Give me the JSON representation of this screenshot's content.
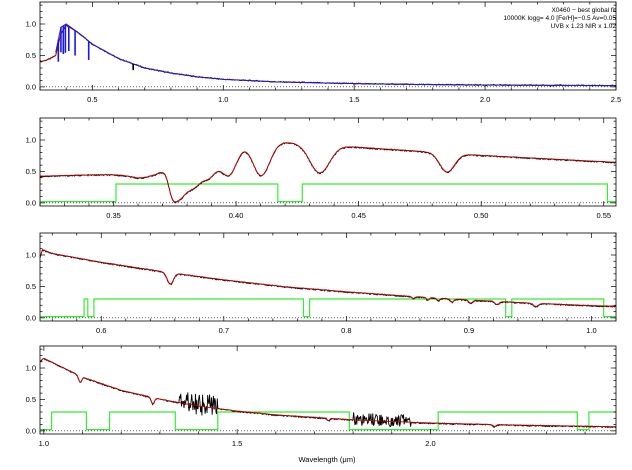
{
  "figure": {
    "xlabel": "Wavelength (μm)",
    "annotation": [
      "X0460 − best global fit",
      "10000K logg= 4.0 [Fe/H]=−0.5 Av=0.05",
      "UVB x 1.23  NIR x 1.02"
    ]
  },
  "colors": {
    "observed": "#000000",
    "model": "#c00000",
    "uvb_model": "#1a1adf",
    "mask": "#33ee33",
    "axis": "#000000"
  },
  "chart_data": [
    {
      "type": "line",
      "panel": "full",
      "xlim": [
        0.3,
        2.5
      ],
      "ylim": [
        -0.05,
        1.35
      ],
      "xticks": [
        0.5,
        1.0,
        1.5,
        2.0,
        2.5
      ],
      "xtick_labels": [
        "0.5",
        "1.0",
        "1.5",
        "2.0",
        "2.5"
      ],
      "yticks": [
        0.0,
        0.5,
        1.0
      ],
      "ytick_labels": [
        "0.0",
        "0.5",
        "1.0"
      ],
      "series": [
        {
          "role": "model",
          "x": [
            0.3,
            0.32,
            0.34,
            0.36,
            0.38,
            0.4,
            0.45,
            0.5,
            0.6,
            0.7,
            0.8,
            0.9,
            1.0,
            1.2,
            1.4,
            1.6,
            1.8,
            2.0,
            2.2,
            2.5
          ],
          "y": [
            0.4,
            0.42,
            0.45,
            0.5,
            0.85,
            0.98,
            0.85,
            0.68,
            0.45,
            0.3,
            0.22,
            0.16,
            0.12,
            0.08,
            0.06,
            0.045,
            0.035,
            0.03,
            0.025,
            0.02
          ]
        },
        {
          "role": "uvb_model",
          "x": [
            0.36,
            0.38,
            0.4,
            0.45,
            0.5,
            0.6,
            0.7,
            0.8,
            0.9,
            1.0,
            1.2,
            1.4,
            1.6,
            1.8,
            2.0,
            2.2,
            2.5
          ],
          "y": [
            0.55,
            0.95,
            1.0,
            0.85,
            0.68,
            0.45,
            0.3,
            0.22,
            0.16,
            0.12,
            0.08,
            0.06,
            0.045,
            0.035,
            0.03,
            0.025,
            0.02
          ]
        }
      ],
      "features": [
        {
          "x": 0.37,
          "depth": 0.35
        },
        {
          "x": 0.38,
          "depth": 0.4
        },
        {
          "x": 0.389,
          "depth": 0.45
        },
        {
          "x": 0.397,
          "depth": 0.45
        },
        {
          "x": 0.41,
          "depth": 0.4
        },
        {
          "x": 0.434,
          "depth": 0.4
        },
        {
          "x": 0.486,
          "depth": 0.3
        },
        {
          "x": 0.656,
          "depth": 0.1
        }
      ]
    },
    {
      "type": "line",
      "panel": "uvb",
      "xlim": [
        0.32,
        0.555
      ],
      "ylim": [
        -0.05,
        1.35
      ],
      "xticks": [
        0.35,
        0.4,
        0.45,
        0.5,
        0.55
      ],
      "xtick_labels": [
        "0.35",
        "0.40",
        "0.45",
        "0.50",
        "0.55"
      ],
      "yticks": [
        0.0,
        0.5,
        1.0
      ],
      "ytick_labels": [
        "0.0",
        "0.5",
        "1.0"
      ],
      "continuum": {
        "x": [
          0.32,
          0.34,
          0.36,
          0.37,
          0.38,
          0.39,
          0.4,
          0.42,
          0.45,
          0.5,
          0.555
        ],
        "y": [
          0.42,
          0.44,
          0.45,
          0.55,
          0.85,
          0.97,
          1.0,
          0.96,
          0.88,
          0.75,
          0.64
        ]
      },
      "lines": [
        {
          "x": 0.3646,
          "depth": 0.08,
          "width": 0.006
        },
        {
          "x": 0.3734,
          "depth": 0.25,
          "width": 0.0015
        },
        {
          "x": 0.375,
          "depth": 0.3,
          "width": 0.0017
        },
        {
          "x": 0.3771,
          "depth": 0.35,
          "width": 0.0019
        },
        {
          "x": 0.3798,
          "depth": 0.4,
          "width": 0.0022
        },
        {
          "x": 0.3835,
          "depth": 0.45,
          "width": 0.0025
        },
        {
          "x": 0.3889,
          "depth": 0.5,
          "width": 0.003
        },
        {
          "x": 0.397,
          "depth": 0.55,
          "width": 0.0035
        },
        {
          "x": 0.4102,
          "depth": 0.55,
          "width": 0.0035
        },
        {
          "x": 0.4341,
          "depth": 0.45,
          "width": 0.004
        },
        {
          "x": 0.4861,
          "depth": 0.3,
          "width": 0.003
        }
      ],
      "mask": {
        "low": 0.02,
        "high": 0.3,
        "segments": [
          [
            0.32,
            0.351,
            0.02
          ],
          [
            0.351,
            0.417,
            0.3
          ],
          [
            0.417,
            0.427,
            0.02
          ],
          [
            0.427,
            0.5515,
            0.3
          ],
          [
            0.5515,
            0.555,
            0.02
          ]
        ]
      }
    },
    {
      "type": "line",
      "panel": "vis",
      "xlim": [
        0.55,
        1.02
      ],
      "ylim": [
        -0.05,
        1.35
      ],
      "xticks": [
        0.6,
        0.7,
        0.8,
        0.9,
        1.0
      ],
      "xtick_labels": [
        "0.6",
        "0.7",
        "0.8",
        "0.9",
        "1.0"
      ],
      "yticks": [
        0.0,
        0.5,
        1.0
      ],
      "ytick_labels": [
        "0.0",
        "0.5",
        "1.0"
      ],
      "continuum": {
        "x": [
          0.55,
          0.552,
          0.56,
          0.6,
          0.65,
          0.7,
          0.75,
          0.8,
          0.85,
          0.9,
          0.95,
          1.0,
          1.02
        ],
        "y": [
          0.95,
          1.08,
          1.02,
          0.88,
          0.73,
          0.6,
          0.49,
          0.41,
          0.34,
          0.28,
          0.23,
          0.19,
          0.18
        ]
      },
      "lines": [
        {
          "x": 0.6563,
          "depth": 0.18,
          "width": 0.0025
        },
        {
          "x": 0.8545,
          "depth": 0.03,
          "width": 0.0012
        },
        {
          "x": 0.8665,
          "depth": 0.04,
          "width": 0.0012
        },
        {
          "x": 0.875,
          "depth": 0.04,
          "width": 0.0012
        },
        {
          "x": 0.8862,
          "depth": 0.05,
          "width": 0.0014
        },
        {
          "x": 0.9014,
          "depth": 0.05,
          "width": 0.0015
        },
        {
          "x": 0.9229,
          "depth": 0.05,
          "width": 0.0017
        },
        {
          "x": 0.9546,
          "depth": 0.05,
          "width": 0.002
        }
      ],
      "mask": {
        "low": 0.02,
        "high": 0.3,
        "segments": [
          [
            0.55,
            0.586,
            0.02
          ],
          [
            0.586,
            0.589,
            0.3
          ],
          [
            0.589,
            0.594,
            0.02
          ],
          [
            0.594,
            0.765,
            0.3
          ],
          [
            0.765,
            0.77,
            0.02
          ],
          [
            0.77,
            0.93,
            0.3
          ],
          [
            0.93,
            0.935,
            0.02
          ],
          [
            0.935,
            1.01,
            0.3
          ],
          [
            1.01,
            1.02,
            0.02
          ]
        ]
      }
    },
    {
      "type": "line",
      "panel": "nir",
      "xlim": [
        0.99,
        2.48
      ],
      "ylim": [
        -0.05,
        1.35
      ],
      "xticks": [
        1.0,
        1.5,
        2.0
      ],
      "xtick_labels": [
        "1.0",
        "1.5",
        "2.0"
      ],
      "yticks": [
        0.0,
        0.5,
        1.0
      ],
      "ytick_labels": [
        "0.0",
        "0.5",
        "1.0"
      ],
      "continuum": {
        "x": [
          0.99,
          1.0,
          1.05,
          1.1,
          1.2,
          1.3,
          1.4,
          1.5,
          1.6,
          1.8,
          2.0,
          2.2,
          2.48
        ],
        "y": [
          1.1,
          1.15,
          1.0,
          0.85,
          0.64,
          0.5,
          0.39,
          0.31,
          0.25,
          0.17,
          0.12,
          0.09,
          0.06
        ]
      },
      "lines": [
        {
          "x": 1.0938,
          "depth": 0.1,
          "width": 0.004
        },
        {
          "x": 1.2818,
          "depth": 0.1,
          "width": 0.004
        },
        {
          "x": 1.7362,
          "depth": 0.04,
          "width": 0.003
        },
        {
          "x": 2.1655,
          "depth": 0.03,
          "width": 0.004
        }
      ],
      "noise_regions": [
        [
          1.35,
          1.45,
          0.18
        ],
        [
          1.8,
          1.95,
          0.1
        ]
      ],
      "mask": {
        "low": 0.02,
        "high": 0.3,
        "segments": [
          [
            0.99,
            1.02,
            0.02
          ],
          [
            1.02,
            1.11,
            0.3
          ],
          [
            1.11,
            1.17,
            0.02
          ],
          [
            1.17,
            1.34,
            0.3
          ],
          [
            1.34,
            1.45,
            0.02
          ],
          [
            1.45,
            1.79,
            0.3
          ],
          [
            1.79,
            2.02,
            0.02
          ],
          [
            2.02,
            2.38,
            0.3
          ],
          [
            2.38,
            2.41,
            0.02
          ],
          [
            2.41,
            2.48,
            0.3
          ]
        ]
      }
    }
  ]
}
